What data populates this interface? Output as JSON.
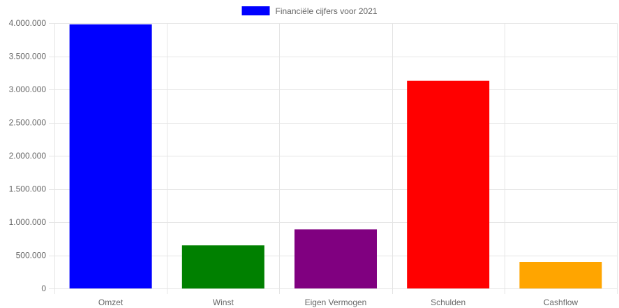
{
  "chart_data": {
    "type": "bar",
    "categories": [
      "Omzet",
      "Winst",
      "Eigen Vermogen",
      "Schulden",
      "Cashflow"
    ],
    "series": [
      {
        "name": "Financiële cijfers voor 2021",
        "values": [
          3980000,
          650000,
          890000,
          3130000,
          400000
        ],
        "colors": [
          "#0000ff",
          "#008000",
          "#800080",
          "#ff0000",
          "#ffa500"
        ]
      }
    ],
    "legend": {
      "position": "top",
      "swatch_color": "#0000ff"
    },
    "ylim": [
      0,
      4000000
    ],
    "yticks": [
      {
        "value": 0,
        "label": "0"
      },
      {
        "value": 500000,
        "label": "500.000"
      },
      {
        "value": 1000000,
        "label": "1.000.000"
      },
      {
        "value": 1500000,
        "label": "1.500.000"
      },
      {
        "value": 2000000,
        "label": "2.000.000"
      },
      {
        "value": 2500000,
        "label": "2.500.000"
      },
      {
        "value": 3000000,
        "label": "3.000.000"
      },
      {
        "value": 3500000,
        "label": "3.500.000"
      },
      {
        "value": 4000000,
        "label": "4.000.000"
      }
    ],
    "grid": true,
    "grid_color": "#e5e5e5",
    "label_color": "#666666"
  }
}
